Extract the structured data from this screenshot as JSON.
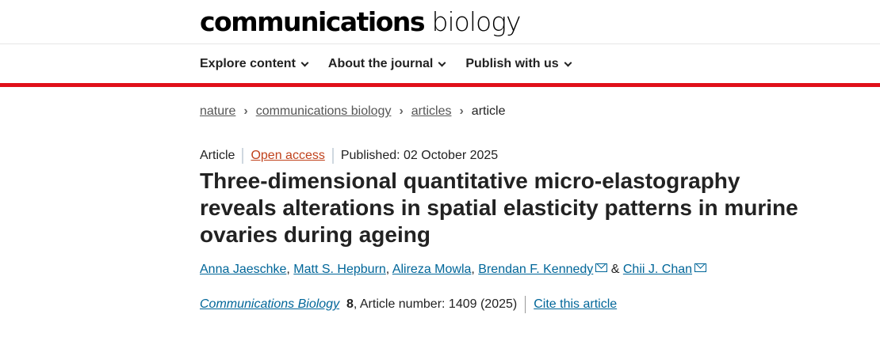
{
  "header": {
    "logo_bold": "communications",
    "logo_light": "biology"
  },
  "nav": [
    "Explore content",
    "About the journal",
    "Publish with us"
  ],
  "breadcrumb": [
    "nature",
    "communications biology",
    "articles",
    "article"
  ],
  "meta": {
    "type": "Article",
    "access": "Open access",
    "published": "Published: 02 October 2025"
  },
  "title": "Three-dimensional quantitative micro-elastography reveals alterations in spatial elasticity patterns in murine ovaries during ageing",
  "authors": [
    "Anna Jaeschke",
    "Matt S. Hepburn",
    "Alireza Mowla",
    "Brendan F. Kennedy",
    "Chii J. Chan"
  ],
  "author_sep": ", ",
  "author_amp": " & ",
  "citation": {
    "journal": "Communications Biology",
    "volume": "8",
    "rest": ", Article number: 1409 (2025)",
    "cite_link": "Cite this article"
  },
  "colors": {
    "accent_red": "#e0101a",
    "link": "#006699",
    "open_access": "#c0421c"
  }
}
